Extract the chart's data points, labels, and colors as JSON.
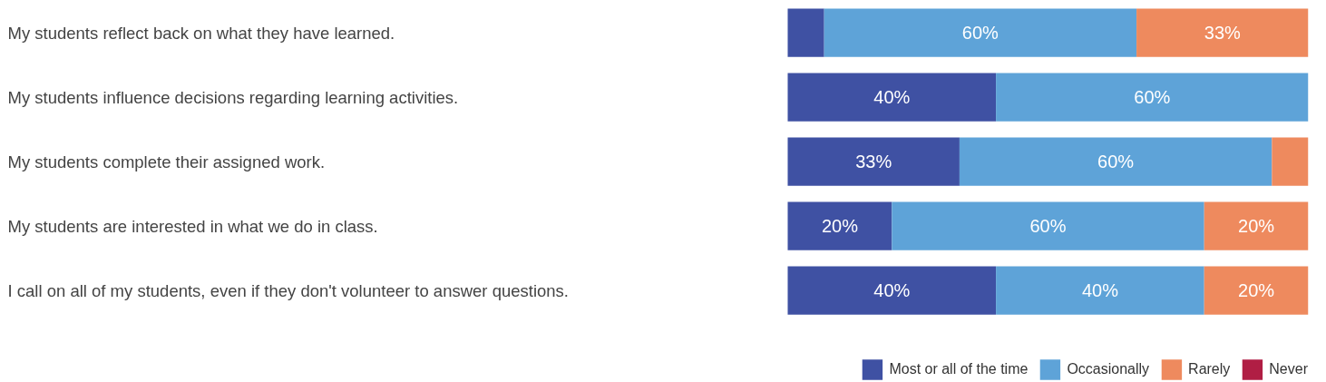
{
  "chart_data": {
    "type": "bar",
    "orientation": "horizontal",
    "stacked": true,
    "categories": [
      "My students reflect back on what they have learned.",
      "My students influence decisions regarding learning activities.",
      "My students complete their assigned work.",
      "My students are interested in what we do in class.",
      "I call on all of my students, even if they don't volunteer to answer questions."
    ],
    "series": [
      {
        "name": "Most or all of the time",
        "color": "#3f51a3",
        "values": [
          7,
          40,
          33,
          20,
          40
        ],
        "value_labels": [
          null,
          "40%",
          "33%",
          "20%",
          "40%"
        ]
      },
      {
        "name": "Occasionally",
        "color": "#5ea3d8",
        "values": [
          60,
          60,
          60,
          60,
          40
        ],
        "value_labels": [
          "60%",
          "60%",
          "60%",
          "60%",
          "40%"
        ]
      },
      {
        "name": "Rarely",
        "color": "#ee8a5e",
        "values": [
          33,
          0,
          7,
          20,
          20
        ],
        "value_labels": [
          "33%",
          null,
          null,
          "20%",
          "20%"
        ]
      },
      {
        "name": "Never",
        "color": "#b01e44",
        "values": [
          0,
          0,
          0,
          0,
          0
        ],
        "value_labels": [
          null,
          null,
          null,
          null,
          null
        ]
      }
    ],
    "xlim": [
      0,
      100
    ],
    "grid": false,
    "legend": "bottom right",
    "tick_labels": false
  }
}
